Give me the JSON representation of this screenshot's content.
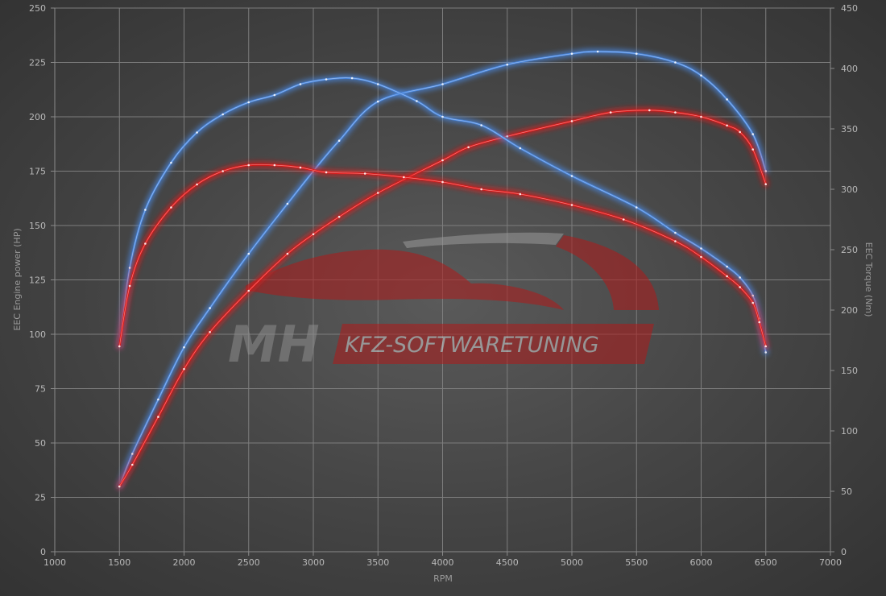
{
  "colors": {
    "tuned": "#e01818",
    "stock": "#4a88e0",
    "grid": "#7d7d7d",
    "tick_text": "#b9b9b9",
    "background": "#474747"
  },
  "watermark": {
    "mh": "MH",
    "brand": "KFZ-SOFTWARETUNING"
  },
  "chart_data": {
    "type": "line",
    "xlabel": "RPM",
    "ylabel_left": "EEC Engine power (HP)",
    "ylabel_right": "EEC Torque (Nm)",
    "xlim": [
      1000,
      7000
    ],
    "ylim_left": [
      0,
      250
    ],
    "ylim_right": [
      0,
      450
    ],
    "x_ticks": [
      1000,
      1500,
      2000,
      2500,
      3000,
      3500,
      4000,
      4500,
      5000,
      5500,
      6000,
      6500,
      7000
    ],
    "y_left_ticks": [
      0,
      25,
      50,
      75,
      100,
      125,
      150,
      175,
      200,
      225,
      250
    ],
    "y_right_ticks": [
      0,
      50,
      100,
      150,
      200,
      250,
      300,
      350,
      400,
      450
    ],
    "grid": true,
    "series": [
      {
        "axis": "left",
        "color_key": "stock",
        "x": [
          1500,
          1600,
          1800,
          2000,
          2200,
          2500,
          2800,
          3000,
          3200,
          3500,
          4000,
          4500,
          5000,
          5200,
          5500,
          5800,
          6000,
          6200,
          6400,
          6500
        ],
        "y": [
          30,
          45,
          70,
          94,
          112,
          137,
          160,
          175,
          189,
          207,
          215,
          224,
          229,
          230,
          229,
          225,
          219,
          208,
          192,
          175
        ]
      },
      {
        "axis": "left",
        "color_key": "tuned",
        "x": [
          1500,
          1600,
          1800,
          2000,
          2200,
          2500,
          2800,
          3000,
          3200,
          3500,
          4000,
          4200,
          4500,
          5000,
          5300,
          5600,
          5800,
          6000,
          6200,
          6300,
          6400,
          6500
        ],
        "y": [
          30,
          40,
          62,
          84,
          101,
          120,
          137,
          146,
          154,
          165,
          180,
          186,
          191,
          198,
          202,
          203,
          202,
          200,
          196,
          193,
          185,
          169
        ]
      },
      {
        "axis": "right",
        "color_key": "stock",
        "x": [
          1500,
          1580,
          1700,
          1900,
          2100,
          2300,
          2500,
          2700,
          2900,
          3100,
          3300,
          3500,
          3800,
          4000,
          4300,
          4600,
          5000,
          5500,
          5800,
          6000,
          6200,
          6300,
          6400,
          6450,
          6500
        ],
        "y": [
          170,
          235,
          283,
          322,
          347,
          362,
          372,
          378,
          387,
          391,
          392,
          387,
          373,
          360,
          353,
          334,
          311,
          285,
          264,
          251,
          236,
          227,
          212,
          193,
          165
        ]
      },
      {
        "axis": "right",
        "color_key": "tuned",
        "x": [
          1500,
          1580,
          1700,
          1900,
          2100,
          2300,
          2500,
          2700,
          2900,
          3100,
          3400,
          3700,
          4000,
          4300,
          4600,
          5000,
          5400,
          5800,
          6000,
          6200,
          6300,
          6400,
          6450,
          6500
        ],
        "y": [
          170,
          220,
          255,
          285,
          304,
          315,
          320,
          320,
          318,
          314,
          313,
          310,
          306,
          300,
          296,
          287,
          275,
          257,
          244,
          228,
          219,
          206,
          190,
          170
        ]
      }
    ]
  }
}
